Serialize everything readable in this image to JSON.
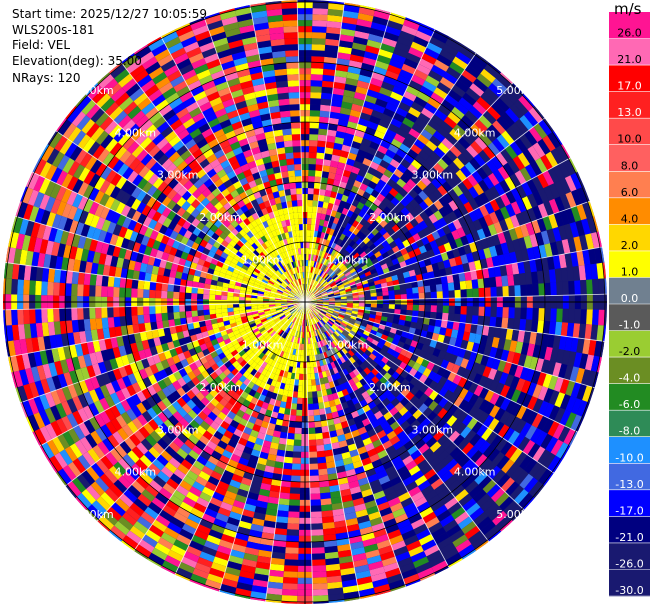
{
  "meta": {
    "start_time": "Start time: 2025/12/27 10:05:59",
    "instrument": "WLS200s-181",
    "field": "Field: VEL",
    "elevation": "Elevation(deg): 35.00",
    "nrays": "NRays: 120"
  },
  "chart_data": {
    "type": "heatmap",
    "subtype": "ppi-polar",
    "field": "VEL",
    "units": "m/s",
    "n_rays": 120,
    "range_rings_km": [
      1.0,
      2.0,
      3.0,
      4.0,
      5.0
    ],
    "range_ring_labels": [
      "1.00km",
      "2.00km",
      "3.00km",
      "4.00km",
      "5.00km"
    ],
    "colorbar": {
      "unit_label": "m/s",
      "ticks": [
        "26.0",
        "21.0",
        "17.0",
        "13.0",
        "10.0",
        "8.0",
        "6.0",
        "4.0",
        "2.0",
        "1.0",
        "0.0",
        "-1.0",
        "-2.0",
        "-4.0",
        "-6.0",
        "-8.0",
        "-10.0",
        "-13.0",
        "-17.0",
        "-21.0",
        "-26.0",
        "-30.0"
      ],
      "colors": [
        "#ff1493",
        "#ff69b4",
        "#ff0000",
        "#ff2020",
        "#ff4a4a",
        "#ff6060",
        "#ff7f50",
        "#ff8c00",
        "#ffd700",
        "#ffff00",
        "#708090",
        "#5a5a5a",
        "#9acd32",
        "#6b8e23",
        "#228b22",
        "#2e8b57",
        "#1e90ff",
        "#4169e1",
        "#0000ff",
        "#000080",
        "#191970",
        "#191970"
      ]
    }
  }
}
